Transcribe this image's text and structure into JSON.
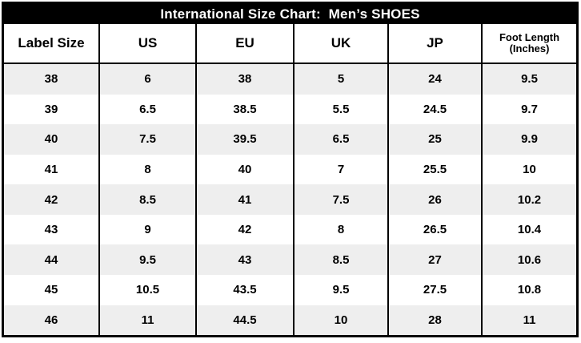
{
  "table": {
    "title": "International Size Chart:  Men’s SHOES",
    "columns": [
      "Label Size",
      "US",
      "EU",
      "UK",
      "JP",
      "Foot Length (Inches)"
    ],
    "rows": [
      [
        "38",
        "6",
        "38",
        "5",
        "24",
        "9.5"
      ],
      [
        "39",
        "6.5",
        "38.5",
        "5.5",
        "24.5",
        "9.7"
      ],
      [
        "40",
        "7.5",
        "39.5",
        "6.5",
        "25",
        "9.9"
      ],
      [
        "41",
        "8",
        "40",
        "7",
        "25.5",
        "10"
      ],
      [
        "42",
        "8.5",
        "41",
        "7.5",
        "26",
        "10.2"
      ],
      [
        "43",
        "9",
        "42",
        "8",
        "26.5",
        "10.4"
      ],
      [
        "44",
        "9.5",
        "43",
        "8.5",
        "27",
        "10.6"
      ],
      [
        "45",
        "10.5",
        "43.5",
        "9.5",
        "27.5",
        "10.8"
      ],
      [
        "46",
        "11",
        "44.5",
        "10",
        "28",
        "11"
      ]
    ],
    "colors": {
      "title_bg": "#000000",
      "title_text": "#ffffff",
      "stripe": "#eeeeee",
      "border": "#000000"
    }
  }
}
